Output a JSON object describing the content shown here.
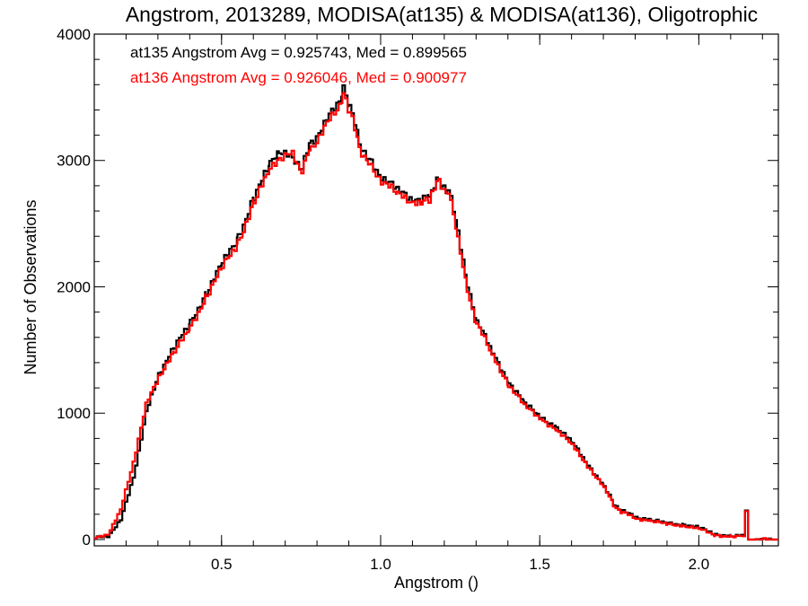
{
  "chart_data": {
    "type": "line",
    "title": "Angstrom, 2013289, MODISA(at135) & MODISA(at136), Oligotrophic",
    "xlabel": "Angstrom ()",
    "ylabel": "Number of Observations",
    "xlim": [
      0.1,
      2.25
    ],
    "ylim": [
      -50,
      4000
    ],
    "x_ticks": [
      0.5,
      1.0,
      1.5,
      2.0
    ],
    "x_tick_labels": [
      "0.5",
      "1.0",
      "1.5",
      "2.0"
    ],
    "y_ticks": [
      0,
      1000,
      2000,
      3000,
      4000
    ],
    "y_tick_labels": [
      "0",
      "1000",
      "2000",
      "3000",
      "4000"
    ],
    "legend_placement": "top-left",
    "grid": false,
    "series": [
      {
        "color": "#000000",
        "stats_label": "at135 Angstrom Avg = 0.925743, Med = 0.899565",
        "points": [
          [
            0.1,
            10
          ],
          [
            0.14,
            30
          ],
          [
            0.18,
            150
          ],
          [
            0.22,
            500
          ],
          [
            0.26,
            1000
          ],
          [
            0.3,
            1320
          ],
          [
            0.35,
            1520
          ],
          [
            0.4,
            1720
          ],
          [
            0.45,
            1960
          ],
          [
            0.5,
            2180
          ],
          [
            0.55,
            2400
          ],
          [
            0.6,
            2720
          ],
          [
            0.65,
            2960
          ],
          [
            0.68,
            3080
          ],
          [
            0.72,
            3000
          ],
          [
            0.75,
            2950
          ],
          [
            0.78,
            3150
          ],
          [
            0.82,
            3280
          ],
          [
            0.86,
            3450
          ],
          [
            0.88,
            3560
          ],
          [
            0.9,
            3420
          ],
          [
            0.93,
            3150
          ],
          [
            0.96,
            3000
          ],
          [
            1.0,
            2880
          ],
          [
            1.05,
            2750
          ],
          [
            1.1,
            2700
          ],
          [
            1.15,
            2720
          ],
          [
            1.18,
            2850
          ],
          [
            1.21,
            2760
          ],
          [
            1.24,
            2450
          ],
          [
            1.27,
            2000
          ],
          [
            1.3,
            1720
          ],
          [
            1.35,
            1470
          ],
          [
            1.4,
            1250
          ],
          [
            1.45,
            1070
          ],
          [
            1.5,
            970
          ],
          [
            1.55,
            890
          ],
          [
            1.6,
            760
          ],
          [
            1.65,
            590
          ],
          [
            1.7,
            420
          ],
          [
            1.73,
            280
          ],
          [
            1.76,
            220
          ],
          [
            1.8,
            180
          ],
          [
            1.85,
            150
          ],
          [
            1.9,
            130
          ],
          [
            1.95,
            120
          ],
          [
            2.0,
            90
          ],
          [
            2.05,
            40
          ],
          [
            2.1,
            30
          ],
          [
            2.14,
            30
          ],
          [
            2.145,
            230
          ],
          [
            2.152,
            230
          ],
          [
            2.155,
            0
          ],
          [
            2.25,
            0
          ]
        ]
      },
      {
        "color": "#ff0000",
        "stats_label": "at136 Angstrom Avg = 0.926046, Med = 0.900977",
        "points": [
          [
            0.1,
            8
          ],
          [
            0.14,
            45
          ],
          [
            0.18,
            230
          ],
          [
            0.22,
            620
          ],
          [
            0.26,
            1060
          ],
          [
            0.3,
            1300
          ],
          [
            0.35,
            1480
          ],
          [
            0.4,
            1690
          ],
          [
            0.45,
            1930
          ],
          [
            0.5,
            2150
          ],
          [
            0.55,
            2360
          ],
          [
            0.6,
            2680
          ],
          [
            0.65,
            2920
          ],
          [
            0.68,
            3020
          ],
          [
            0.72,
            3040
          ],
          [
            0.75,
            2920
          ],
          [
            0.78,
            3110
          ],
          [
            0.82,
            3250
          ],
          [
            0.86,
            3410
          ],
          [
            0.88,
            3520
          ],
          [
            0.9,
            3380
          ],
          [
            0.93,
            3110
          ],
          [
            0.96,
            2970
          ],
          [
            1.0,
            2850
          ],
          [
            1.05,
            2720
          ],
          [
            1.1,
            2680
          ],
          [
            1.15,
            2690
          ],
          [
            1.18,
            2840
          ],
          [
            1.21,
            2740
          ],
          [
            1.24,
            2400
          ],
          [
            1.27,
            1960
          ],
          [
            1.3,
            1700
          ],
          [
            1.35,
            1450
          ],
          [
            1.4,
            1230
          ],
          [
            1.45,
            1050
          ],
          [
            1.5,
            960
          ],
          [
            1.55,
            870
          ],
          [
            1.6,
            740
          ],
          [
            1.65,
            580
          ],
          [
            1.7,
            410
          ],
          [
            1.73,
            270
          ],
          [
            1.76,
            210
          ],
          [
            1.8,
            170
          ],
          [
            1.85,
            140
          ],
          [
            1.9,
            125
          ],
          [
            1.95,
            110
          ],
          [
            2.0,
            80
          ],
          [
            2.05,
            35
          ],
          [
            2.1,
            25
          ],
          [
            2.14,
            25
          ],
          [
            2.145,
            225
          ],
          [
            2.152,
            225
          ],
          [
            2.155,
            0
          ],
          [
            2.25,
            0
          ]
        ]
      }
    ]
  }
}
